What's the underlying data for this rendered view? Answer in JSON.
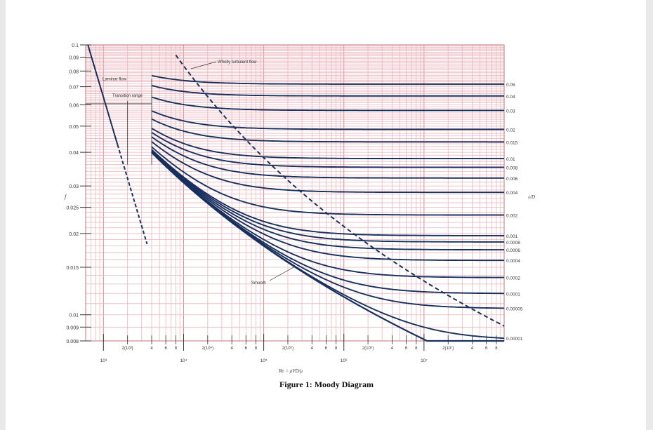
{
  "caption": "Figure 1: Moody Diagram",
  "chart_data": {
    "type": "line",
    "title": "",
    "xlabel": "Re = ρVD/μ",
    "ylabel": "f",
    "right_axis_label": "ε/D",
    "x_scale": "log",
    "y_scale": "log",
    "xlim": [
      600,
      100000000
    ],
    "ylim": [
      0.008,
      0.1
    ],
    "grid": true,
    "y_ticks": [
      0.1,
      0.09,
      0.08,
      0.07,
      0.06,
      0.05,
      0.04,
      0.03,
      0.025,
      0.02,
      0.015,
      0.01,
      0.009,
      0.008
    ],
    "y_tick_labels": [
      "0.1",
      "0.09",
      "0.08",
      "0.07",
      "0.06",
      "0.05",
      "0.04",
      "0.03",
      "0.025",
      "0.02",
      "0.015",
      "0.01",
      "0.009",
      "0.008"
    ],
    "x_major_ticks": [
      1000,
      10000,
      100000,
      1000000,
      10000000
    ],
    "x_major_labels": [
      "10³",
      "10⁴",
      "10⁵",
      "10⁶",
      "10⁷"
    ],
    "x_minor_ticks": [
      2,
      4,
      6,
      8
    ],
    "x_minor_labels": [
      "2(10ⁿ)",
      "4",
      "6",
      "8"
    ],
    "annotations": {
      "laminar": "Laminar flow",
      "transition": "Transition range",
      "turbulent": "Wholly turbulent flow",
      "smooth": "Smooth"
    },
    "series": [
      {
        "roughness": 0.05,
        "label": "0.05",
        "f_full": 0.0716
      },
      {
        "roughness": 0.04,
        "label": "0.04",
        "f_full": 0.0649
      },
      {
        "roughness": 0.03,
        "label": "0.03",
        "f_full": 0.0572
      },
      {
        "roughness": 0.02,
        "label": "0.02",
        "f_full": 0.049
      },
      {
        "roughness": 0.015,
        "label": "0.015",
        "f_full": 0.0438
      },
      {
        "roughness": 0.01,
        "label": "0.01",
        "f_full": 0.0379
      },
      {
        "roughness": 0.008,
        "label": "0.008",
        "f_full": 0.0353
      },
      {
        "roughness": 0.006,
        "label": "0.006",
        "f_full": 0.0324
      },
      {
        "roughness": 0.004,
        "label": "0.004",
        "f_full": 0.0284
      },
      {
        "roughness": 0.002,
        "label": "0.002",
        "f_full": 0.0234
      },
      {
        "roughness": 0.001,
        "label": "0.001",
        "f_full": 0.0196
      },
      {
        "roughness": 0.0008,
        "label": "0.0008",
        "f_full": 0.0186
      },
      {
        "roughness": 0.0006,
        "label": "0.0006",
        "f_full": 0.0175
      },
      {
        "roughness": 0.0004,
        "label": "0.0004",
        "f_full": 0.016
      },
      {
        "roughness": 0.0002,
        "label": "0.0002",
        "f_full": 0.0137
      },
      {
        "roughness": 0.0001,
        "label": "0.0001",
        "f_full": 0.012
      },
      {
        "roughness": 5e-05,
        "label": "0.00005",
        "f_full": 0.0106
      },
      {
        "roughness": 1e-05,
        "label": "0.00001",
        "f_full": 0.008
      },
      {
        "roughness": 0,
        "label": "",
        "f_full": null
      }
    ]
  }
}
